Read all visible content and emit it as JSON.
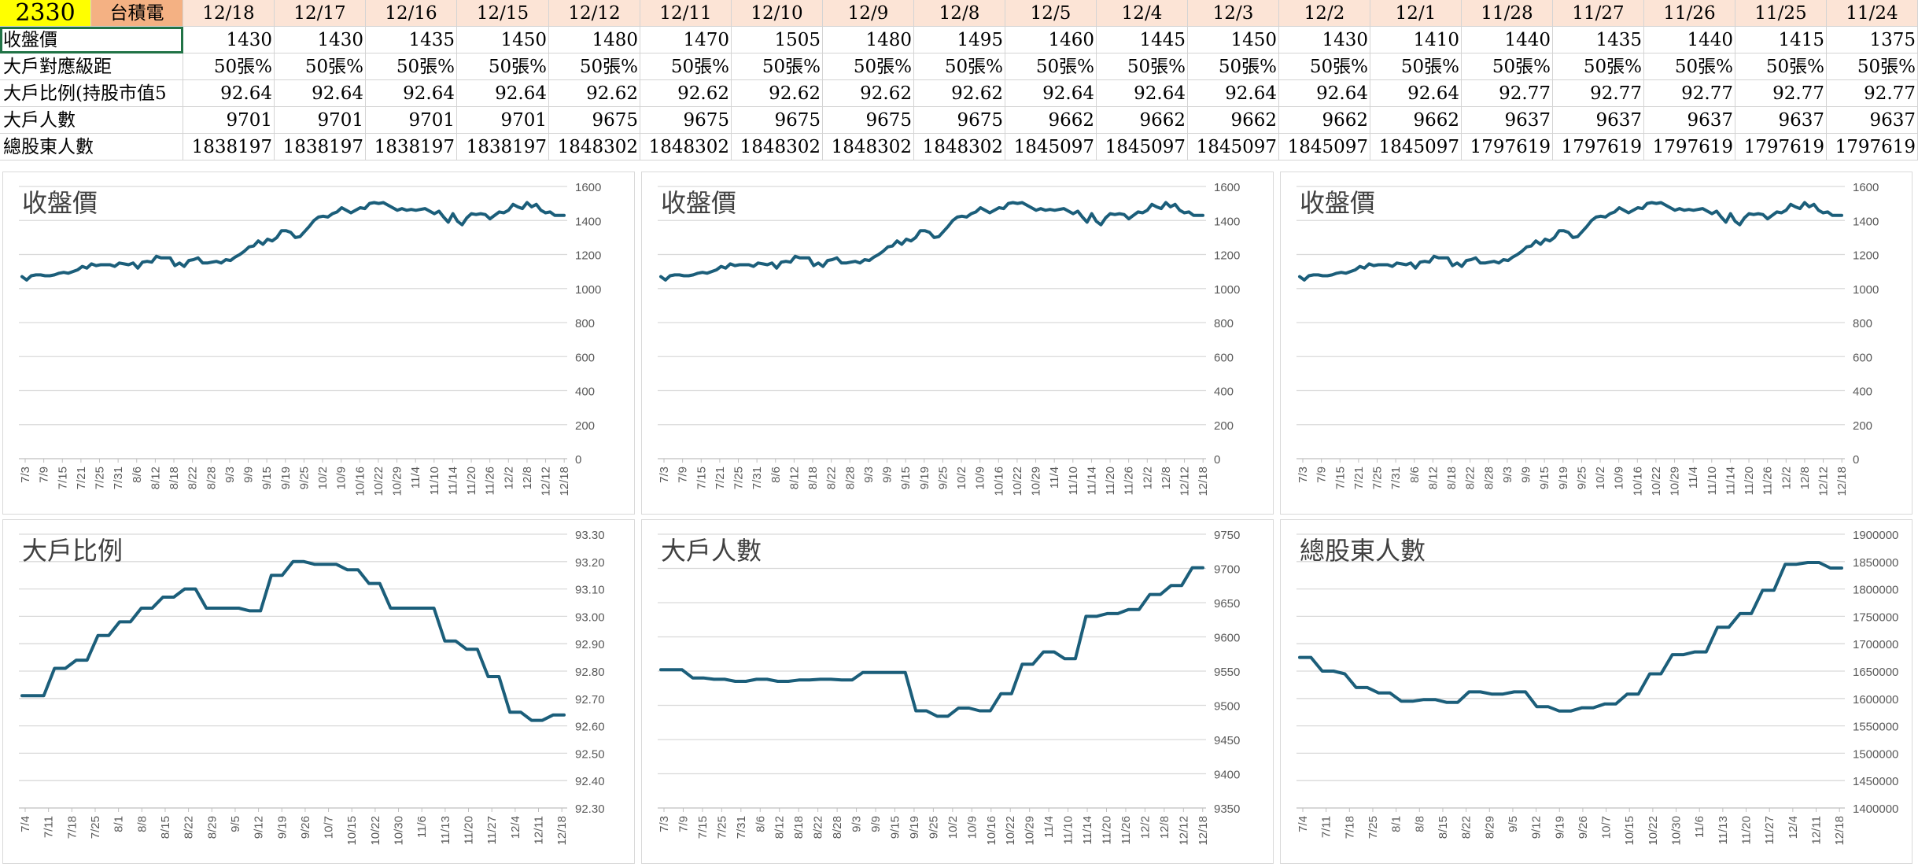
{
  "table": {
    "stock_code": "2330",
    "stock_name": "台積電",
    "dates": [
      "12/18",
      "12/17",
      "12/16",
      "12/15",
      "12/12",
      "12/11",
      "12/10",
      "12/9",
      "12/8",
      "12/5",
      "12/4",
      "12/3",
      "12/2",
      "12/1",
      "11/28",
      "11/27",
      "11/26",
      "11/25",
      "11/24"
    ],
    "rows": [
      {
        "label": "收盤價",
        "values": [
          "1430",
          "1430",
          "1435",
          "1450",
          "1480",
          "1470",
          "1505",
          "1480",
          "1495",
          "1460",
          "1445",
          "1450",
          "1430",
          "1410",
          "1440",
          "1435",
          "1440",
          "1415",
          "1375"
        ]
      },
      {
        "label": "大戶對應級距",
        "values": [
          "50張%",
          "50張%",
          "50張%",
          "50張%",
          "50張%",
          "50張%",
          "50張%",
          "50張%",
          "50張%",
          "50張%",
          "50張%",
          "50張%",
          "50張%",
          "50張%",
          "50張%",
          "50張%",
          "50張%",
          "50張%",
          "50張%"
        ]
      },
      {
        "label": "大戶比例(持股市值5",
        "values": [
          "92.64",
          "92.64",
          "92.64",
          "92.64",
          "92.62",
          "92.62",
          "92.62",
          "92.62",
          "92.62",
          "92.64",
          "92.64",
          "92.64",
          "92.64",
          "92.64",
          "92.77",
          "92.77",
          "92.77",
          "92.77",
          "92.77"
        ]
      },
      {
        "label": "大戶人數",
        "values": [
          "9701",
          "9701",
          "9701",
          "9701",
          "9675",
          "9675",
          "9675",
          "9675",
          "9675",
          "9662",
          "9662",
          "9662",
          "9662",
          "9662",
          "9637",
          "9637",
          "9637",
          "9637",
          "9637"
        ]
      },
      {
        "label": "總股東人數",
        "values": [
          "1838197",
          "1838197",
          "1838197",
          "1838197",
          "1848302",
          "1848302",
          "1848302",
          "1848302",
          "1848302",
          "1845097",
          "1845097",
          "1845097",
          "1845097",
          "1845097",
          "1797619",
          "1797619",
          "1797619",
          "1797619",
          "1797619"
        ]
      }
    ]
  },
  "chart_data": [
    {
      "type": "line",
      "title": "收盤價",
      "ylim": [
        0,
        1600
      ],
      "yticks": [
        "0",
        "200",
        "400",
        "600",
        "800",
        "1000",
        "1200",
        "1400",
        "1600"
      ],
      "xticks": [
        "7/3",
        "7/9",
        "7/15",
        "7/21",
        "7/25",
        "7/31",
        "8/6",
        "8/12",
        "8/18",
        "8/22",
        "8/28",
        "9/3",
        "9/9",
        "9/15",
        "9/19",
        "9/25",
        "10/2",
        "10/9",
        "10/16",
        "10/22",
        "10/29",
        "11/4",
        "11/10",
        "11/14",
        "11/20",
        "11/26",
        "12/2",
        "12/8",
        "12/12",
        "12/18"
      ],
      "series": [
        {
          "color": "#1b5e7a",
          "values": [
            1070,
            1050,
            1075,
            1080,
            1080,
            1075,
            1075,
            1080,
            1090,
            1095,
            1090,
            1100,
            1110,
            1130,
            1120,
            1145,
            1135,
            1140,
            1140,
            1140,
            1130,
            1150,
            1145,
            1140,
            1150,
            1120,
            1155,
            1160,
            1155,
            1190,
            1180,
            1180,
            1180,
            1135,
            1150,
            1130,
            1165,
            1170,
            1180,
            1150,
            1150,
            1155,
            1160,
            1150,
            1170,
            1165,
            1185,
            1200,
            1220,
            1245,
            1250,
            1280,
            1260,
            1290,
            1280,
            1300,
            1340,
            1340,
            1330,
            1300,
            1305,
            1335,
            1365,
            1400,
            1420,
            1425,
            1420,
            1440,
            1450,
            1475,
            1460,
            1445,
            1460,
            1475,
            1470,
            1500,
            1505,
            1500,
            1505,
            1490,
            1475,
            1460,
            1470,
            1460,
            1465,
            1460,
            1465,
            1470,
            1455,
            1440,
            1455,
            1420,
            1390,
            1440,
            1395,
            1375,
            1415,
            1440,
            1435,
            1440,
            1435,
            1410,
            1430,
            1450,
            1445,
            1460,
            1495,
            1480,
            1470,
            1505,
            1480,
            1495,
            1460,
            1445,
            1450,
            1430,
            1430,
            1430
          ]
        }
      ]
    },
    {
      "type": "line",
      "title": "收盤價",
      "ylim": [
        0,
        1600
      ],
      "yticks": [
        "0",
        "200",
        "400",
        "600",
        "800",
        "1000",
        "1200",
        "1400",
        "1600"
      ],
      "xticks": [
        "7/3",
        "7/9",
        "7/15",
        "7/21",
        "7/25",
        "7/31",
        "8/6",
        "8/12",
        "8/18",
        "8/22",
        "8/28",
        "9/3",
        "9/9",
        "9/15",
        "9/19",
        "9/25",
        "10/2",
        "10/9",
        "10/16",
        "10/22",
        "10/29",
        "11/4",
        "11/10",
        "11/14",
        "11/20",
        "11/26",
        "12/2",
        "12/8",
        "12/12",
        "12/18"
      ],
      "series": [
        {
          "color": "#1b5e7a",
          "values": [
            1070,
            1050,
            1075,
            1080,
            1080,
            1075,
            1075,
            1080,
            1090,
            1095,
            1090,
            1100,
            1110,
            1130,
            1120,
            1145,
            1135,
            1140,
            1140,
            1140,
            1130,
            1150,
            1145,
            1140,
            1150,
            1120,
            1155,
            1160,
            1155,
            1190,
            1180,
            1180,
            1180,
            1135,
            1150,
            1130,
            1165,
            1170,
            1180,
            1150,
            1150,
            1155,
            1160,
            1150,
            1170,
            1165,
            1185,
            1200,
            1220,
            1245,
            1250,
            1280,
            1260,
            1290,
            1280,
            1300,
            1340,
            1340,
            1330,
            1300,
            1305,
            1335,
            1365,
            1400,
            1420,
            1425,
            1420,
            1440,
            1450,
            1475,
            1460,
            1445,
            1460,
            1475,
            1470,
            1500,
            1505,
            1500,
            1505,
            1490,
            1475,
            1460,
            1470,
            1460,
            1465,
            1460,
            1465,
            1470,
            1455,
            1440,
            1455,
            1420,
            1390,
            1440,
            1395,
            1375,
            1415,
            1440,
            1435,
            1440,
            1435,
            1410,
            1430,
            1450,
            1445,
            1460,
            1495,
            1480,
            1470,
            1505,
            1480,
            1495,
            1460,
            1445,
            1450,
            1430,
            1430,
            1430
          ]
        }
      ]
    },
    {
      "type": "line",
      "title": "收盤價",
      "ylim": [
        0,
        1600
      ],
      "yticks": [
        "0",
        "200",
        "400",
        "600",
        "800",
        "1000",
        "1200",
        "1400",
        "1600"
      ],
      "xticks": [
        "7/3",
        "7/9",
        "7/15",
        "7/21",
        "7/25",
        "7/31",
        "8/6",
        "8/12",
        "8/18",
        "8/22",
        "8/28",
        "9/3",
        "9/9",
        "9/15",
        "9/19",
        "9/25",
        "10/2",
        "10/9",
        "10/16",
        "10/22",
        "10/29",
        "11/4",
        "11/10",
        "11/14",
        "11/20",
        "11/26",
        "12/2",
        "12/8",
        "12/12",
        "12/18"
      ],
      "series": [
        {
          "color": "#1b5e7a",
          "values": [
            1070,
            1050,
            1075,
            1080,
            1080,
            1075,
            1075,
            1080,
            1090,
            1095,
            1090,
            1100,
            1110,
            1130,
            1120,
            1145,
            1135,
            1140,
            1140,
            1140,
            1130,
            1150,
            1145,
            1140,
            1150,
            1120,
            1155,
            1160,
            1155,
            1190,
            1180,
            1180,
            1180,
            1135,
            1150,
            1130,
            1165,
            1170,
            1180,
            1150,
            1150,
            1155,
            1160,
            1150,
            1170,
            1165,
            1185,
            1200,
            1220,
            1245,
            1250,
            1280,
            1260,
            1290,
            1280,
            1300,
            1340,
            1340,
            1330,
            1300,
            1305,
            1335,
            1365,
            1400,
            1420,
            1425,
            1420,
            1440,
            1450,
            1475,
            1460,
            1445,
            1460,
            1475,
            1470,
            1500,
            1505,
            1500,
            1505,
            1490,
            1475,
            1460,
            1470,
            1460,
            1465,
            1460,
            1465,
            1470,
            1455,
            1440,
            1455,
            1420,
            1390,
            1440,
            1395,
            1375,
            1415,
            1440,
            1435,
            1440,
            1435,
            1410,
            1430,
            1450,
            1445,
            1460,
            1495,
            1480,
            1470,
            1505,
            1480,
            1495,
            1460,
            1445,
            1450,
            1430,
            1430,
            1430
          ]
        }
      ]
    },
    {
      "type": "line",
      "title": "大戶比例",
      "ylim": [
        92.3,
        93.3
      ],
      "yticks": [
        "92.30",
        "92.40",
        "92.50",
        "92.60",
        "92.70",
        "92.80",
        "92.90",
        "93.00",
        "93.10",
        "93.20",
        "93.30"
      ],
      "xticks": [
        "7/4",
        "7/11",
        "7/18",
        "7/25",
        "8/1",
        "8/8",
        "8/15",
        "8/22",
        "8/29",
        "9/5",
        "9/12",
        "9/19",
        "9/26",
        "10/7",
        "10/15",
        "10/22",
        "10/30",
        "11/6",
        "11/13",
        "11/20",
        "11/27",
        "12/4",
        "12/11",
        "12/18"
      ],
      "series": [
        {
          "color": "#1b5e7a",
          "values": [
            92.71,
            92.71,
            92.71,
            92.81,
            92.81,
            92.84,
            92.84,
            92.93,
            92.93,
            92.98,
            92.98,
            93.03,
            93.03,
            93.07,
            93.07,
            93.1,
            93.1,
            93.03,
            93.03,
            93.03,
            93.03,
            93.02,
            93.02,
            93.15,
            93.15,
            93.2,
            93.2,
            93.19,
            93.19,
            93.19,
            93.17,
            93.17,
            93.12,
            93.12,
            93.03,
            93.03,
            93.03,
            93.03,
            93.03,
            92.91,
            92.91,
            92.88,
            92.88,
            92.78,
            92.78,
            92.65,
            92.65,
            92.62,
            92.62,
            92.64,
            92.64
          ]
        }
      ]
    },
    {
      "type": "line",
      "title": "大戶人數",
      "ylim": [
        9350,
        9750
      ],
      "yticks": [
        "9350",
        "9400",
        "9450",
        "9500",
        "9550",
        "9600",
        "9650",
        "9700",
        "9750"
      ],
      "xticks": [
        "7/3",
        "7/9",
        "7/15",
        "7/25",
        "7/31",
        "8/6",
        "8/12",
        "8/18",
        "8/22",
        "8/28",
        "9/3",
        "9/9",
        "9/15",
        "9/19",
        "9/25",
        "10/2",
        "10/9",
        "10/16",
        "10/22",
        "10/29",
        "11/4",
        "11/10",
        "11/14",
        "11/20",
        "11/26",
        "12/2",
        "12/8",
        "12/12",
        "12/18"
      ],
      "series": [
        {
          "color": "#1b5e7a",
          "values": [
            9552,
            9552,
            9552,
            9540,
            9540,
            9538,
            9538,
            9535,
            9535,
            9538,
            9538,
            9535,
            9535,
            9537,
            9537,
            9538,
            9538,
            9537,
            9537,
            9548,
            9548,
            9548,
            9548,
            9548,
            9492,
            9492,
            9484,
            9484,
            9496,
            9496,
            9492,
            9492,
            9517,
            9517,
            9560,
            9560,
            9578,
            9578,
            9568,
            9568,
            9630,
            9630,
            9634,
            9634,
            9640,
            9640,
            9662,
            9662,
            9675,
            9675,
            9701,
            9701
          ]
        }
      ]
    },
    {
      "type": "line",
      "title": "總股東人數",
      "ylim": [
        1400000,
        1900000
      ],
      "yticks": [
        "1400000",
        "1450000",
        "1500000",
        "1550000",
        "1600000",
        "1650000",
        "1700000",
        "1750000",
        "1800000",
        "1850000",
        "1900000"
      ],
      "xticks": [
        "7/4",
        "7/11",
        "7/18",
        "7/25",
        "8/1",
        "8/8",
        "8/15",
        "8/22",
        "8/29",
        "9/5",
        "9/12",
        "9/19",
        "9/26",
        "10/7",
        "10/15",
        "10/22",
        "10/30",
        "11/6",
        "11/13",
        "11/20",
        "11/27",
        "12/4",
        "12/11",
        "12/18"
      ],
      "series": [
        {
          "color": "#1b5e7a",
          "values": [
            1675000,
            1675000,
            1650000,
            1650000,
            1645000,
            1620000,
            1620000,
            1610000,
            1610000,
            1595000,
            1595000,
            1598000,
            1598000,
            1593000,
            1593000,
            1612000,
            1612000,
            1608000,
            1608000,
            1612000,
            1612000,
            1585000,
            1585000,
            1577000,
            1577000,
            1583000,
            1583000,
            1590000,
            1590000,
            1608000,
            1608000,
            1645000,
            1645000,
            1680000,
            1680000,
            1685000,
            1685000,
            1730000,
            1730000,
            1755000,
            1755000,
            1797619,
            1797619,
            1845097,
            1845097,
            1848302,
            1848302,
            1838197,
            1838197
          ]
        }
      ]
    }
  ]
}
